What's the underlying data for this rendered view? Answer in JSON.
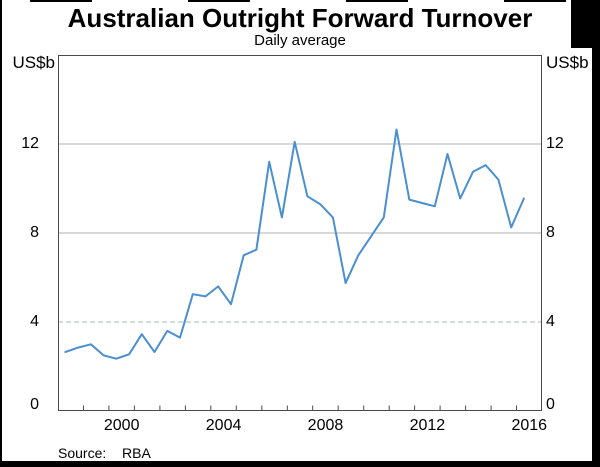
{
  "chart_data": {
    "type": "line",
    "title": "Australian Outright Forward Turnover",
    "subtitle": "Daily average",
    "unit_left": "US$b",
    "unit_right": "US$b",
    "xlim": [
      1998,
      2017
    ],
    "ylim": [
      0,
      16
    ],
    "yticks": [
      0,
      4,
      8,
      12
    ],
    "ytick_dashed_value": 4,
    "xtick_year_start": 1999,
    "xtick_year_end": 2016,
    "xtick_labels": [
      "2000",
      "2004",
      "2008",
      "2012",
      "2016"
    ],
    "grid": "horizontal",
    "legend_position": "none",
    "series": [
      {
        "name": "Outright forward turnover, daily average",
        "x": [
          1998.29,
          1998.79,
          1999.29,
          1999.79,
          2000.29,
          2000.79,
          2001.29,
          2001.79,
          2002.29,
          2002.79,
          2003.29,
          2003.79,
          2004.29,
          2004.79,
          2005.29,
          2005.79,
          2006.29,
          2006.79,
          2007.29,
          2007.79,
          2008.29,
          2008.79,
          2009.29,
          2009.79,
          2010.29,
          2010.79,
          2011.29,
          2011.79,
          2012.29,
          2012.79,
          2013.29,
          2013.79,
          2014.29,
          2014.79,
          2015.29,
          2015.79,
          2016.29
        ],
        "values": [
          2.65,
          2.85,
          3.0,
          2.5,
          2.35,
          2.55,
          3.45,
          2.65,
          3.6,
          3.3,
          5.25,
          5.15,
          5.6,
          4.8,
          7.0,
          7.25,
          11.2,
          8.7,
          12.1,
          9.65,
          9.3,
          8.7,
          5.75,
          7.0,
          7.85,
          8.7,
          12.65,
          9.5,
          9.35,
          9.2,
          11.55,
          9.55,
          10.75,
          11.05,
          10.4,
          8.25,
          9.55
        ]
      }
    ],
    "source_label": "Source:",
    "source_value": "RBA",
    "colors": {
      "line": "#4a8fd1",
      "grid_solid": "#b3b3b3",
      "grid_dashed": "#a0c0a8",
      "frame": "#4a4a4a",
      "text": "#000000"
    }
  }
}
